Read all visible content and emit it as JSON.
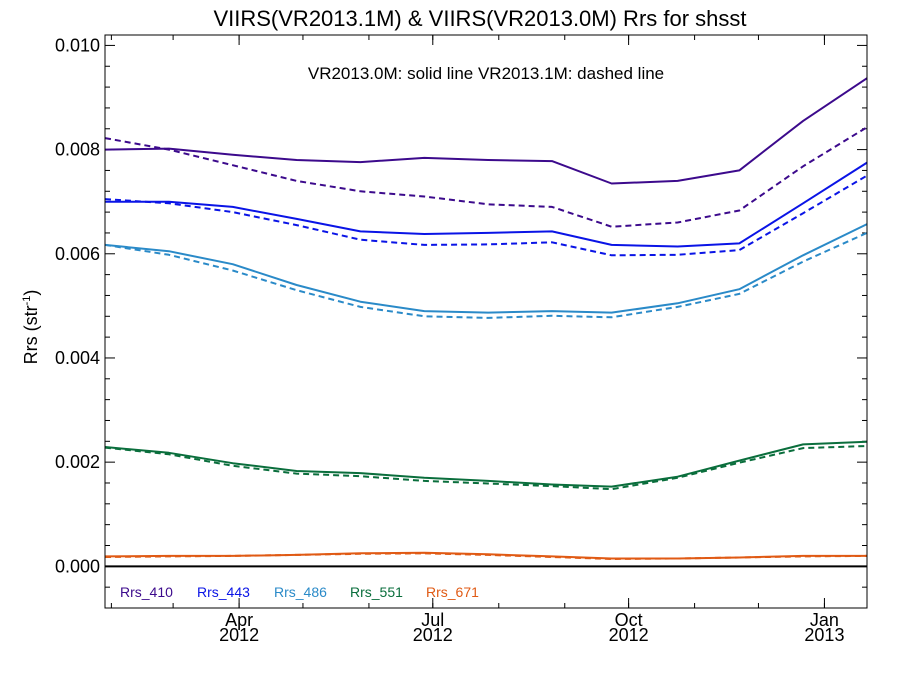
{
  "chart_data": {
    "type": "line",
    "title": "VIIRS(VR2013.1M) & VIIRS(VR2013.0M)  Rrs for shsst",
    "annotation": "VR2013.0M: solid line   VR2013.1M: dashed line",
    "ylabel": "Rrs (str",
    "ylabel_sup": "-1",
    "ylabel_close": ")",
    "ylim": [
      -0.0008,
      0.0102
    ],
    "xlim": [
      "2012-01-29",
      "2013-01-21"
    ],
    "y_ticks": [
      "0.000",
      "0.002",
      "0.004",
      "0.006",
      "0.008",
      "0.010"
    ],
    "x_ticks": [
      {
        "month": "Apr",
        "year": "2012",
        "date": "2012-04-01"
      },
      {
        "month": "Jul",
        "year": "2012",
        "date": "2012-07-01"
      },
      {
        "month": "Oct",
        "year": "2012",
        "date": "2012-10-01"
      },
      {
        "month": "Jan",
        "year": "2013",
        "date": "2013-01-01"
      }
    ],
    "grid": false,
    "legend_position": "bottom-left",
    "x": [
      "2012-01-29",
      "2012-02-28",
      "2012-03-29",
      "2012-04-28",
      "2012-05-28",
      "2012-06-27",
      "2012-07-27",
      "2012-08-26",
      "2012-09-23",
      "2012-10-24",
      "2012-11-22",
      "2012-12-22",
      "2013-01-21"
    ],
    "series": [
      {
        "name": "Rrs_410",
        "color": "#3c0a8c",
        "solid": [
          0.008,
          0.00802,
          0.0079,
          0.0078,
          0.00776,
          0.00784,
          0.0078,
          0.00778,
          0.00735,
          0.0074,
          0.0076,
          0.00855,
          0.00937
        ],
        "dashed": [
          0.00822,
          0.008,
          0.0077,
          0.0074,
          0.0072,
          0.0071,
          0.00695,
          0.0069,
          0.00652,
          0.0066,
          0.00683,
          0.00768,
          0.00843
        ]
      },
      {
        "name": "Rrs_443",
        "color": "#0a14e6",
        "solid": [
          0.007,
          0.007,
          0.0069,
          0.00667,
          0.00643,
          0.00638,
          0.0064,
          0.00643,
          0.00617,
          0.00614,
          0.0062,
          0.00697,
          0.00775
        ],
        "dashed": [
          0.00705,
          0.00697,
          0.0068,
          0.00655,
          0.00627,
          0.00617,
          0.00618,
          0.00622,
          0.00597,
          0.00598,
          0.00607,
          0.00678,
          0.0075
        ]
      },
      {
        "name": "Rrs_486",
        "color": "#2a8ac8",
        "solid": [
          0.00617,
          0.00605,
          0.0058,
          0.0054,
          0.00508,
          0.0049,
          0.00487,
          0.0049,
          0.00487,
          0.00505,
          0.00532,
          0.00597,
          0.00657
        ],
        "dashed": [
          0.00617,
          0.00598,
          0.00568,
          0.0053,
          0.00498,
          0.0048,
          0.00477,
          0.00481,
          0.00478,
          0.00498,
          0.00523,
          0.00585,
          0.0064
        ]
      },
      {
        "name": "Rrs_551",
        "color": "#0a6e3c",
        "solid": [
          0.00229,
          0.00218,
          0.00198,
          0.00183,
          0.00179,
          0.0017,
          0.00164,
          0.00157,
          0.00153,
          0.00172,
          0.00203,
          0.00234,
          0.00239
        ],
        "dashed": [
          0.00228,
          0.00215,
          0.00193,
          0.00178,
          0.00173,
          0.00164,
          0.00159,
          0.00154,
          0.00148,
          0.0017,
          0.00199,
          0.00227,
          0.00231
        ]
      },
      {
        "name": "Rrs_671",
        "color": "#e05a14",
        "solid": [
          0.00019,
          0.0002,
          0.0002,
          0.00022,
          0.00025,
          0.00026,
          0.00023,
          0.00019,
          0.00015,
          0.00015,
          0.00017,
          0.0002,
          0.0002
        ],
        "dashed": [
          0.00018,
          0.00019,
          0.0002,
          0.00022,
          0.00024,
          0.00025,
          0.00022,
          0.00018,
          0.00014,
          0.00015,
          0.00017,
          0.00019,
          0.0002
        ]
      }
    ],
    "zero_line": 0
  }
}
